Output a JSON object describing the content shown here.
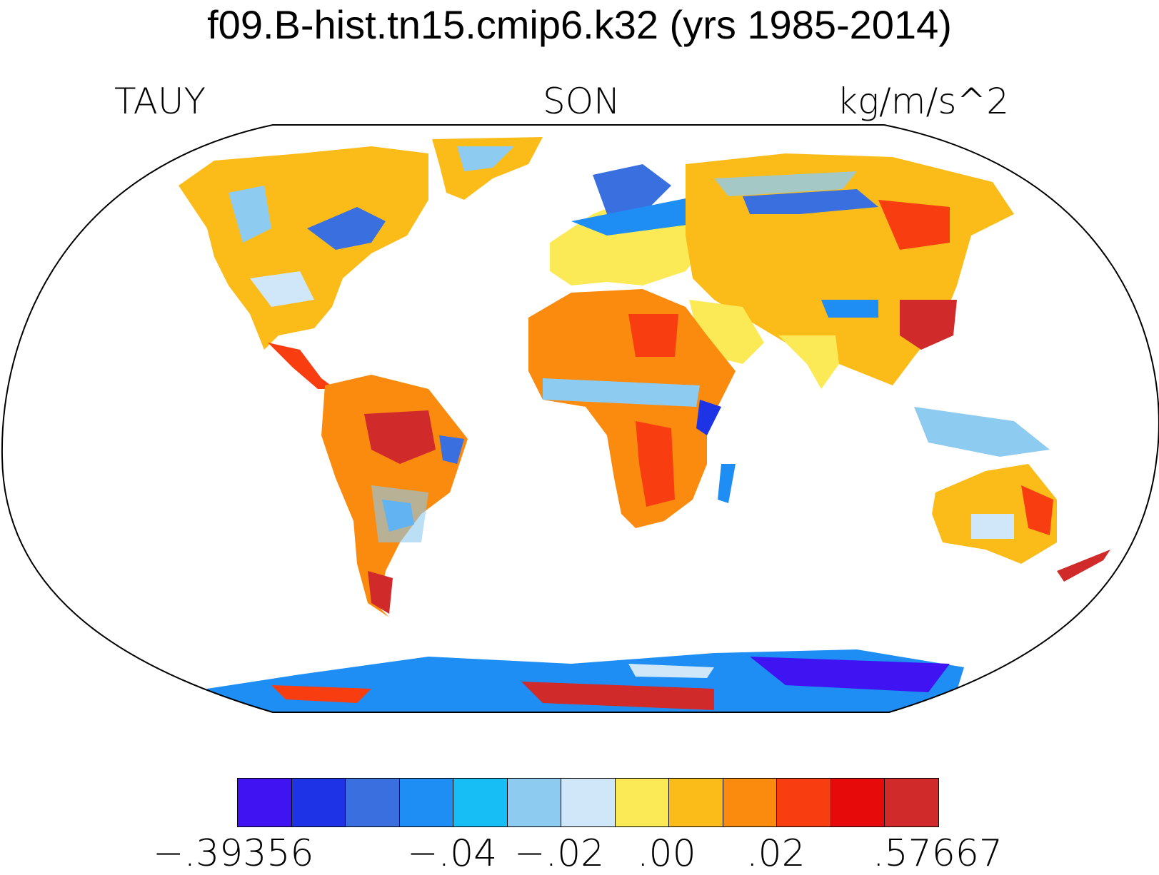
{
  "title": "f09.B-hist.tn15.cmip6.k32 (yrs 1985-2014)",
  "left_label": "TAUY",
  "center_label": "SON",
  "right_label": "kg/m/s^2",
  "colorbar": {
    "colors": [
      "#3f13f2",
      "#1f33e6",
      "#3a6fe0",
      "#1e8ef5",
      "#17bdf5",
      "#8ecbf0",
      "#cfe7f8",
      "#fbea55",
      "#fbbc1a",
      "#fb8b0e",
      "#f83e10",
      "#e60a0a",
      "#d12a2a"
    ],
    "tick_labels": [
      "−.39356",
      "−.04",
      "−.02",
      ".00",
      ".02",
      ".57667"
    ]
  }
}
